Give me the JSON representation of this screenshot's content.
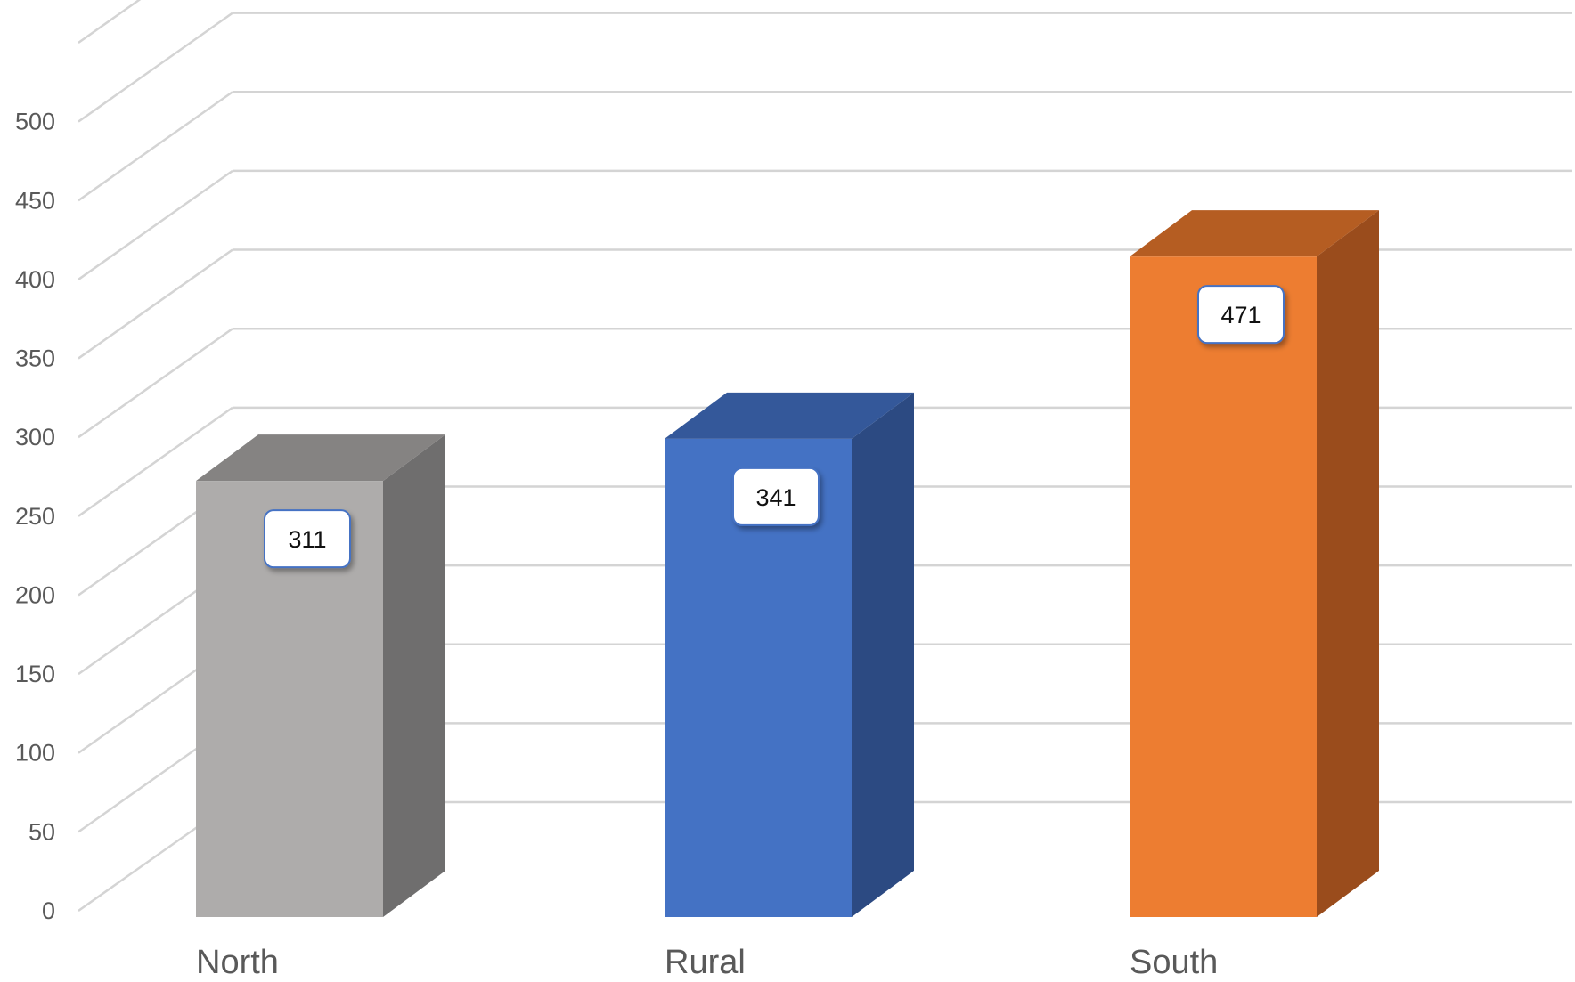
{
  "chart_data": {
    "type": "bar",
    "style": "3d-column",
    "categories": [
      "North",
      "Rural",
      "South"
    ],
    "values": [
      311,
      341,
      471
    ],
    "colors": [
      "#aeacab",
      "#4472c4",
      "#ed7d31"
    ],
    "side_colors": [
      "#6f6e6e",
      "#2c4a82",
      "#9a4c1c"
    ],
    "top_colors": [
      "#858382",
      "#34589a",
      "#b55d22"
    ],
    "data_labels": [
      "311",
      "341",
      "471"
    ],
    "y_ticks": [
      "0",
      "50",
      "100",
      "150",
      "200",
      "250",
      "300",
      "350",
      "400",
      "450",
      "500"
    ],
    "ylim": [
      0,
      550
    ],
    "ytick_step": 50,
    "title": "",
    "xlabel": "",
    "ylabel": "",
    "grid": true,
    "legend": "none"
  }
}
